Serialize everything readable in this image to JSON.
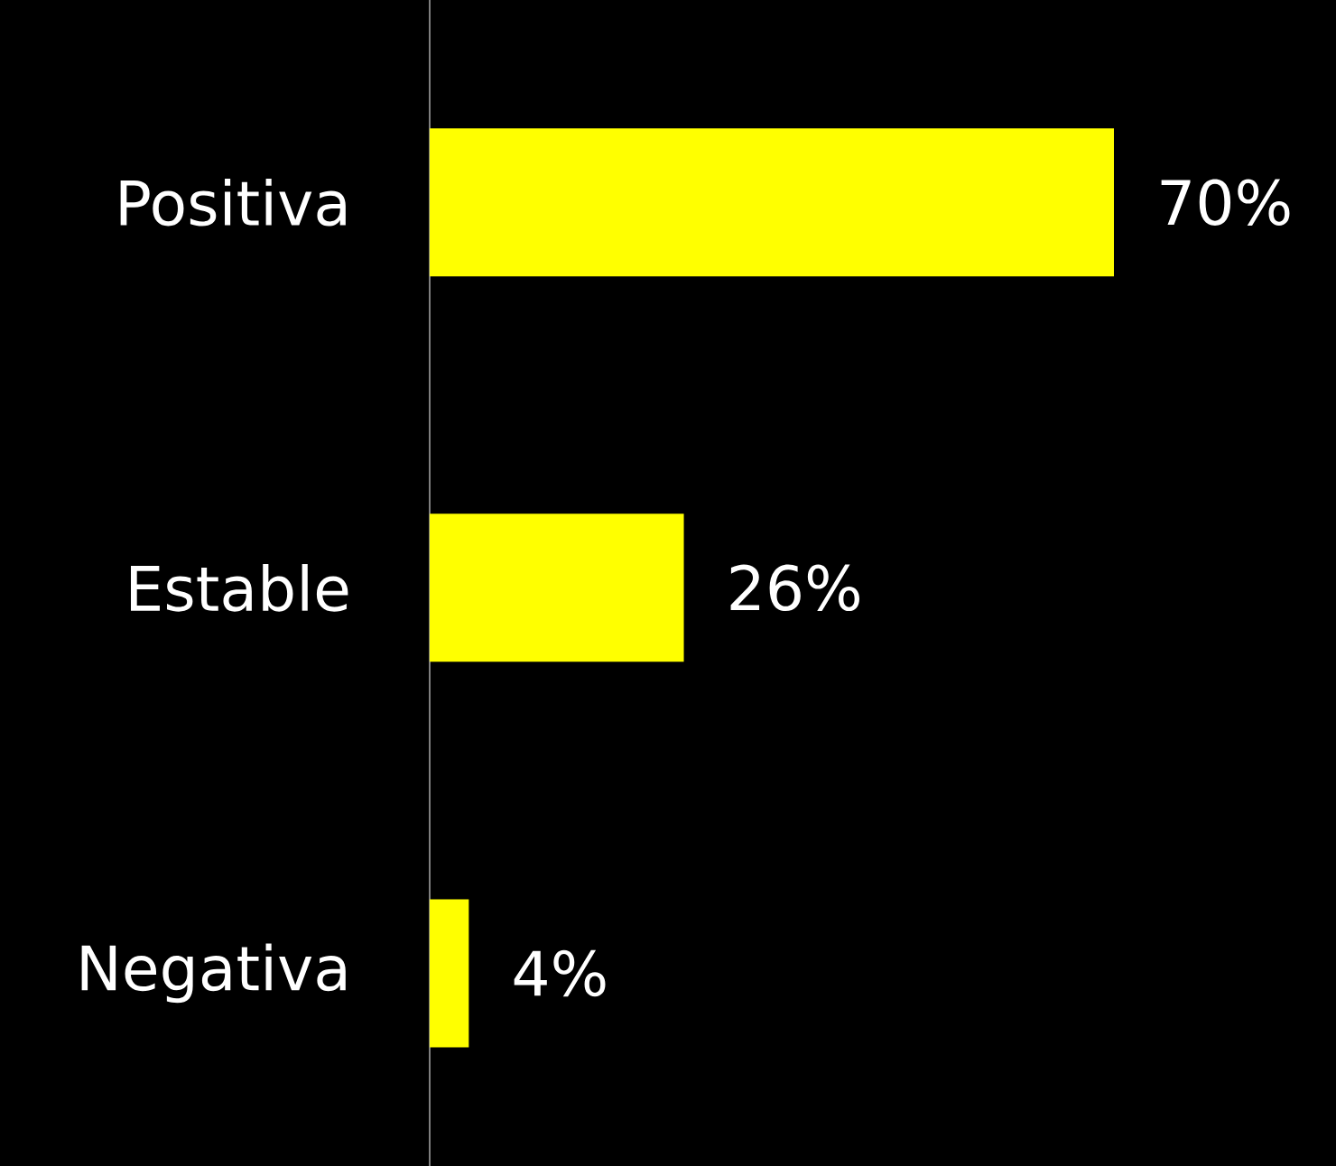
{
  "chart_data": {
    "type": "bar",
    "orientation": "horizontal",
    "categories": [
      "Positiva",
      "Estable",
      "Negativa"
    ],
    "values": [
      70,
      26,
      4
    ],
    "value_labels": [
      "70%",
      "26%",
      "4%"
    ],
    "color": "#ffff00",
    "tick_labels": "y"
  }
}
